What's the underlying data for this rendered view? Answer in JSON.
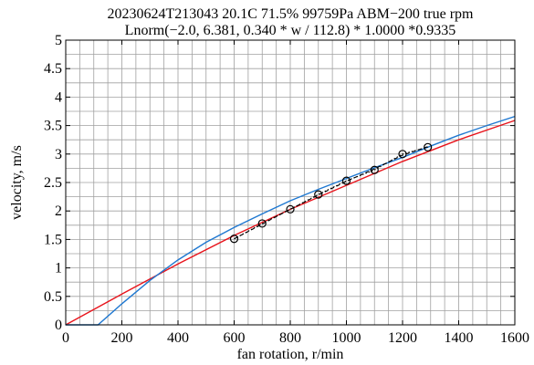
{
  "chart_data": {
    "type": "line",
    "title_lines": [
      "20230624T213043 20.1C 71.5% 99759Pa ABM−200 true rpm",
      "Lnorm(−2.0, 6.381, 0.340 * w / 112.8) * 1.0000 *0.9335"
    ],
    "xlabel": "fan rotation, r/min",
    "ylabel": "velocity, m/s",
    "xlim": [
      0,
      1600
    ],
    "ylim": [
      0,
      5
    ],
    "xticks": [
      0,
      200,
      400,
      600,
      800,
      1000,
      1200,
      1400,
      1600
    ],
    "yticks": [
      0,
      0.5,
      1,
      1.5,
      2,
      2.5,
      3,
      3.5,
      4,
      4.5,
      5
    ],
    "ytick_labels": [
      "0",
      "0.5",
      "1",
      "1.5",
      "2",
      "2.5",
      "3",
      "3.5",
      "4",
      "4.5",
      "5"
    ],
    "grid": true,
    "colors": {
      "red": "#e8141c",
      "blue": "#1f78d1",
      "black": "#000000",
      "grid": "#a0a0a0"
    },
    "series": [
      {
        "style": "red-line",
        "x": [
          0,
          200,
          400,
          600,
          800,
          1000,
          1200,
          1400,
          1600
        ],
        "y": [
          0,
          0.54,
          1.07,
          1.57,
          2.03,
          2.45,
          2.87,
          3.25,
          3.59
        ]
      },
      {
        "style": "blue-line",
        "x": [
          0,
          115,
          200,
          300,
          400,
          500,
          600,
          700,
          800,
          900,
          1000,
          1100,
          1200,
          1300,
          1400,
          1500,
          1600
        ],
        "y": [
          0,
          0,
          0.37,
          0.78,
          1.14,
          1.45,
          1.71,
          1.95,
          2.18,
          2.38,
          2.57,
          2.76,
          2.94,
          3.14,
          3.33,
          3.5,
          3.66
        ]
      },
      {
        "style": "black-dotted-markers",
        "x": [
          600,
          700,
          800,
          900,
          1000,
          1100,
          1200,
          1290
        ],
        "y": [
          1.51,
          1.78,
          2.03,
          2.29,
          2.53,
          2.72,
          3.0,
          3.12
        ]
      },
      {
        "style": "black-dashed-fit",
        "x": [
          600,
          700,
          800,
          900,
          1000,
          1100,
          1200,
          1290
        ],
        "y": [
          1.51,
          1.77,
          2.03,
          2.28,
          2.52,
          2.74,
          2.98,
          3.13
        ]
      }
    ]
  }
}
